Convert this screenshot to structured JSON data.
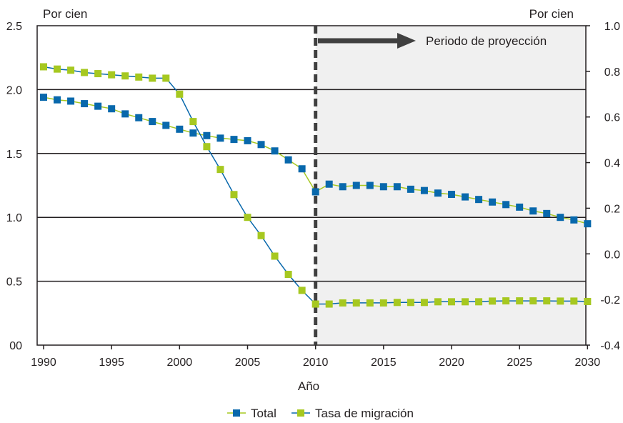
{
  "chart_data": {
    "type": "line",
    "xlabel": "Año",
    "left_axis_unit": "Por cien",
    "right_axis_unit": "Por cien",
    "x_ticks": [
      "1990",
      "1995",
      "2000",
      "2005",
      "2010",
      "2015",
      "2020",
      "2025",
      "2030"
    ],
    "left_ticks": [
      "00",
      "0.5",
      "1.0",
      "1.5",
      "2.0",
      "2.5"
    ],
    "right_ticks": [
      "-0.4",
      "-0.2",
      "0.0",
      "0.2",
      "0.4",
      "0.6",
      "0.8",
      "1.0"
    ],
    "xlim": [
      1990,
      2030.5
    ],
    "ylim_left": [
      0,
      2.5
    ],
    "ylim_right": [
      -0.4,
      1.0
    ],
    "gridlines_left": [
      0.5,
      1.0,
      1.5,
      2.0
    ],
    "annotation": "Periodo de proyección",
    "projection_start": 2010,
    "legend_position": "bottom",
    "colors": {
      "total_marker": "#0868ac",
      "total_line": "#0868ac",
      "migration_marker": "#a6c820",
      "migration_line": "#a6c820",
      "grid": "#231f20",
      "projection_bg": "#f0f0f0",
      "divider": "#404040"
    },
    "series": [
      {
        "name": "Total",
        "axis": "left",
        "marker_color": "#0868ac",
        "line_color": "#a6c820",
        "x": [
          1990,
          1991,
          1992,
          1993,
          1994,
          1995,
          1996,
          1997,
          1998,
          1999,
          2000,
          2001,
          2002,
          2003,
          2004,
          2005,
          2006,
          2007,
          2008,
          2009,
          2010,
          2011,
          2012,
          2013,
          2014,
          2015,
          2016,
          2017,
          2018,
          2019,
          2020,
          2021,
          2022,
          2023,
          2024,
          2025,
          2026,
          2027,
          2028,
          2029,
          2030
        ],
        "values": [
          1.94,
          1.92,
          1.91,
          1.89,
          1.87,
          1.85,
          1.81,
          1.78,
          1.75,
          1.72,
          1.69,
          1.66,
          1.64,
          1.62,
          1.61,
          1.6,
          1.57,
          1.52,
          1.45,
          1.38,
          1.2,
          1.26,
          1.24,
          1.25,
          1.25,
          1.24,
          1.24,
          1.22,
          1.21,
          1.19,
          1.18,
          1.16,
          1.14,
          1.12,
          1.1,
          1.08,
          1.05,
          1.03,
          1.0,
          0.98,
          0.95
        ]
      },
      {
        "name": "Tasa de migración",
        "axis": "right",
        "marker_color": "#a6c820",
        "line_color": "#0868ac",
        "x": [
          1990,
          1991,
          1992,
          1993,
          1994,
          1995,
          1996,
          1997,
          1998,
          1999,
          2000,
          2001,
          2002,
          2003,
          2004,
          2005,
          2006,
          2007,
          2008,
          2009,
          2010,
          2011,
          2012,
          2013,
          2014,
          2015,
          2016,
          2017,
          2018,
          2019,
          2020,
          2021,
          2022,
          2023,
          2024,
          2025,
          2026,
          2027,
          2028,
          2029,
          2030
        ],
        "values": [
          0.82,
          0.81,
          0.805,
          0.795,
          0.79,
          0.785,
          0.78,
          0.775,
          0.77,
          0.77,
          0.7,
          0.58,
          0.47,
          0.37,
          0.26,
          0.16,
          0.08,
          -0.01,
          -0.09,
          -0.16,
          -0.22,
          -0.22,
          -0.215,
          -0.215,
          -0.215,
          -0.215,
          -0.213,
          -0.213,
          -0.213,
          -0.21,
          -0.21,
          -0.21,
          -0.21,
          -0.207,
          -0.206,
          -0.206,
          -0.206,
          -0.206,
          -0.207,
          -0.207,
          -0.209
        ]
      }
    ]
  }
}
